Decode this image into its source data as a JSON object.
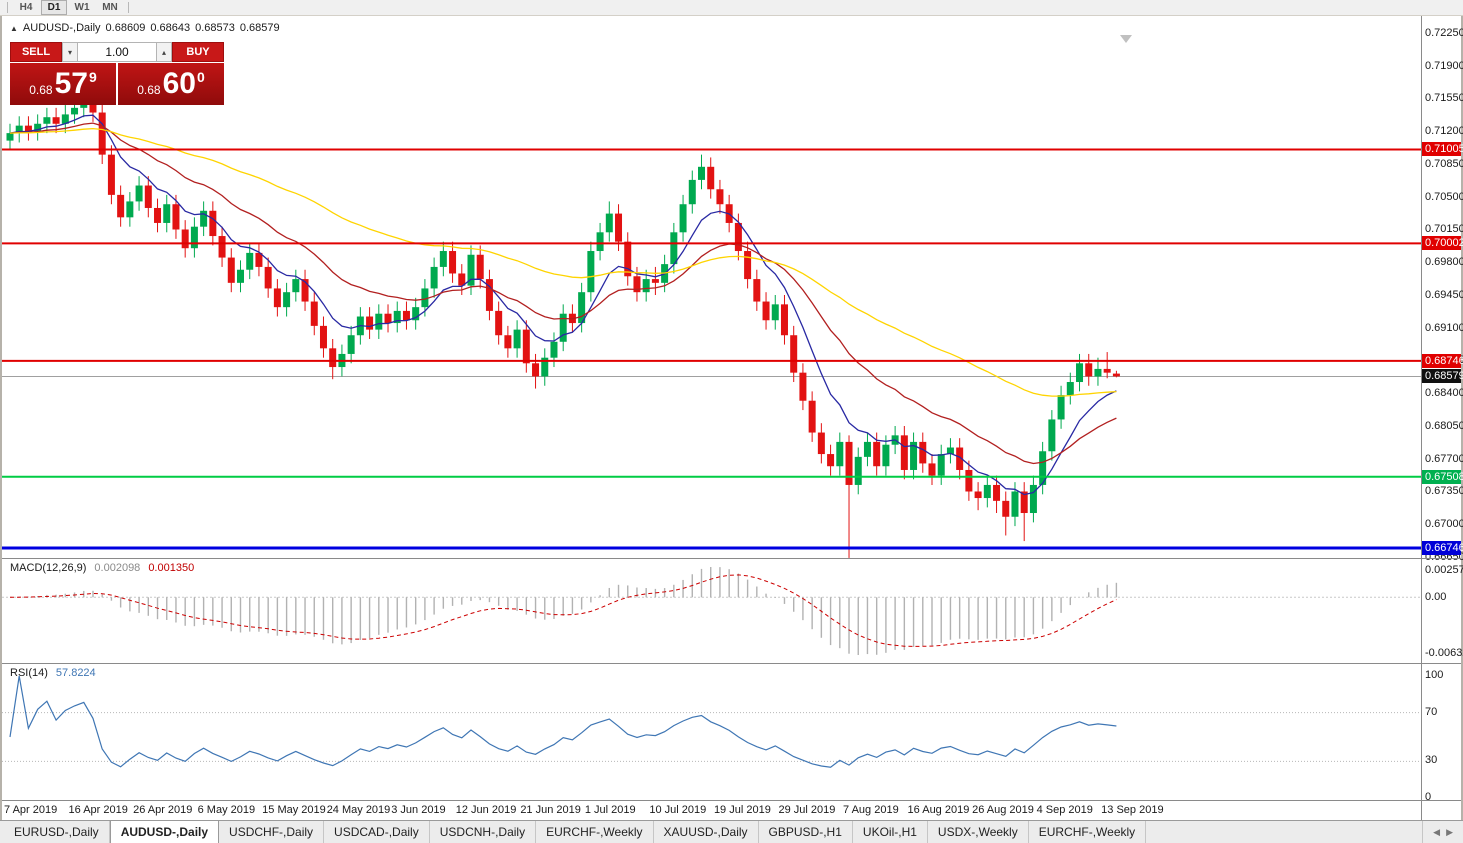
{
  "topbar": {
    "timeframes": [
      {
        "label": "H4",
        "active": false
      },
      {
        "label": "D1",
        "active": true
      },
      {
        "label": "W1",
        "active": false
      },
      {
        "label": "MN",
        "active": false
      }
    ]
  },
  "chart_header": {
    "symbol": "AUDUSD-,Daily",
    "open": "0.68609",
    "high": "0.68643",
    "low": "0.68573",
    "close": "0.68579"
  },
  "trade_panel": {
    "sell_label": "SELL",
    "buy_label": "BUY",
    "volume_value": "1.00",
    "sell_price": {
      "prefix": "0.68",
      "big": "57",
      "sup": "9"
    },
    "buy_price": {
      "prefix": "0.68",
      "big": "60",
      "sup": "0"
    }
  },
  "price_axis": {
    "labels": [
      "0.72250",
      "0.71900",
      "0.71550",
      "0.71200",
      "0.70850",
      "0.70500",
      "0.70150",
      "0.69800",
      "0.69450",
      "0.69100",
      "0.68750",
      "0.68400",
      "0.68050",
      "0.67700",
      "0.67350",
      "0.67000",
      "0.66650"
    ],
    "marked": [
      {
        "text": "0.71005",
        "bg": "#e00000"
      },
      {
        "text": "0.70002",
        "bg": "#e00000"
      },
      {
        "text": "0.68746",
        "bg": "#e00000"
      },
      {
        "text": "0.68579",
        "bg": "#101010"
      },
      {
        "text": "0.67508",
        "bg": "#00b050"
      },
      {
        "text": "0.66746",
        "bg": "#0000d8"
      }
    ]
  },
  "levels": [
    {
      "price": 0.71005,
      "color": "#e00000",
      "width": 2
    },
    {
      "price": 0.70002,
      "color": "#e00000",
      "width": 2
    },
    {
      "price": 0.68746,
      "color": "#e00000",
      "width": 2
    },
    {
      "price": 0.67508,
      "color": "#00cc44",
      "width": 2
    },
    {
      "price": 0.66746,
      "color": "#0000e0",
      "width": 3
    }
  ],
  "bid_line": {
    "price": 0.68579,
    "color": "#a0a0a0"
  },
  "macd": {
    "label": "MACD(12,26,9)",
    "value_main": "0.002098",
    "value_signal": "0.001350",
    "axis": [
      "0.002574",
      "0.00",
      "-0.006326"
    ],
    "params": {
      "fast": 12,
      "slow": 26,
      "signal": 9
    },
    "histogram_color": "#b2b2b2",
    "signal_color": "#cc0000"
  },
  "rsi": {
    "label": "RSI(14)",
    "value": "57.8224",
    "period": 14,
    "axis": [
      "100",
      "70",
      "30",
      "0"
    ],
    "levels": [
      70,
      30
    ],
    "line_color": "#3f76b4"
  },
  "tabs": [
    {
      "label": "EURUSD-,Daily",
      "active": false
    },
    {
      "label": "AUDUSD-,Daily",
      "active": true
    },
    {
      "label": "USDCHF-,Daily",
      "active": false
    },
    {
      "label": "USDCAD-,Daily",
      "active": false
    },
    {
      "label": "USDCNH-,Daily",
      "active": false
    },
    {
      "label": "EURCHF-,Weekly",
      "active": false
    },
    {
      "label": "XAUUSD-,Daily",
      "active": false
    },
    {
      "label": "GBPUSD-,H1",
      "active": false
    },
    {
      "label": "UKOil-,H1",
      "active": false
    },
    {
      "label": "USDX-,Weekly",
      "active": false
    },
    {
      "label": "EURCHF-,Weekly",
      "active": false
    }
  ],
  "chart_data": {
    "type": "candlestick",
    "title": "AUDUSD-,Daily",
    "y_axis": {
      "max_label": 0.7225,
      "min_label": 0.6665,
      "step": 0.0035
    },
    "x_axis_dates": [
      {
        "index": 0,
        "label": "7 Apr 2019"
      },
      {
        "index": 7,
        "label": "16 Apr 2019"
      },
      {
        "index": 14,
        "label": "26 Apr 2019"
      },
      {
        "index": 21,
        "label": "6 May 2019"
      },
      {
        "index": 28,
        "label": "15 May 2019"
      },
      {
        "index": 35,
        "label": "24 May 2019"
      },
      {
        "index": 42,
        "label": "3 Jun 2019"
      },
      {
        "index": 49,
        "label": "12 Jun 2019"
      },
      {
        "index": 56,
        "label": "21 Jun 2019"
      },
      {
        "index": 63,
        "label": "1 Jul 2019"
      },
      {
        "index": 70,
        "label": "10 Jul 2019"
      },
      {
        "index": 77,
        "label": "19 Jul 2019"
      },
      {
        "index": 84,
        "label": "29 Jul 2019"
      },
      {
        "index": 91,
        "label": "7 Aug 2019"
      },
      {
        "index": 98,
        "label": "16 Aug 2019"
      },
      {
        "index": 105,
        "label": "26 Aug 2019"
      },
      {
        "index": 112,
        "label": "4 Sep 2019"
      },
      {
        "index": 119,
        "label": "13 Sep 2019"
      }
    ],
    "colors": {
      "up": "#00a94f",
      "down": "#e21212"
    },
    "moving_averages": [
      {
        "name": "fast",
        "period": 8,
        "method": "ema",
        "color": "#2929a3"
      },
      {
        "name": "medium",
        "period": 21,
        "method": "ema",
        "color": "#b22020"
      },
      {
        "name": "slow",
        "period": 55,
        "method": "ema",
        "color": "#ffd400"
      }
    ],
    "candles": [
      [
        0.711,
        0.7128,
        0.71,
        0.7118
      ],
      [
        0.7118,
        0.7136,
        0.7108,
        0.7126
      ],
      [
        0.7126,
        0.7136,
        0.711,
        0.712
      ],
      [
        0.712,
        0.7138,
        0.711,
        0.7128
      ],
      [
        0.7128,
        0.7145,
        0.7118,
        0.7135
      ],
      [
        0.7135,
        0.7145,
        0.7118,
        0.7128
      ],
      [
        0.7128,
        0.7148,
        0.7118,
        0.7138
      ],
      [
        0.7138,
        0.7155,
        0.7128,
        0.7145
      ],
      [
        0.7145,
        0.7165,
        0.7135,
        0.7152
      ],
      [
        0.7152,
        0.7162,
        0.713,
        0.714
      ],
      [
        0.714,
        0.715,
        0.7085,
        0.7095
      ],
      [
        0.7095,
        0.7105,
        0.7042,
        0.7052
      ],
      [
        0.7052,
        0.7062,
        0.7018,
        0.7028
      ],
      [
        0.7028,
        0.7055,
        0.7018,
        0.7045
      ],
      [
        0.7045,
        0.7072,
        0.7035,
        0.7062
      ],
      [
        0.7062,
        0.7072,
        0.7028,
        0.7038
      ],
      [
        0.7038,
        0.7048,
        0.7012,
        0.7022
      ],
      [
        0.7022,
        0.7052,
        0.7012,
        0.7042
      ],
      [
        0.7042,
        0.7052,
        0.7005,
        0.7015
      ],
      [
        0.7015,
        0.7025,
        0.6985,
        0.6995
      ],
      [
        0.6995,
        0.7028,
        0.6985,
        0.7018
      ],
      [
        0.7018,
        0.7045,
        0.7008,
        0.7035
      ],
      [
        0.7035,
        0.7045,
        0.6998,
        0.7008
      ],
      [
        0.7008,
        0.7018,
        0.6975,
        0.6985
      ],
      [
        0.6985,
        0.6995,
        0.6948,
        0.6958
      ],
      [
        0.6958,
        0.6982,
        0.6948,
        0.6972
      ],
      [
        0.6972,
        0.7,
        0.6962,
        0.699
      ],
      [
        0.699,
        0.7,
        0.6965,
        0.6975
      ],
      [
        0.6975,
        0.6985,
        0.6942,
        0.6952
      ],
      [
        0.6952,
        0.6962,
        0.6922,
        0.6932
      ],
      [
        0.6932,
        0.6958,
        0.6922,
        0.6948
      ],
      [
        0.6948,
        0.6972,
        0.6938,
        0.6962
      ],
      [
        0.6962,
        0.6972,
        0.6928,
        0.6938
      ],
      [
        0.6938,
        0.6948,
        0.6902,
        0.6912
      ],
      [
        0.6912,
        0.6922,
        0.6878,
        0.6888
      ],
      [
        0.6888,
        0.6898,
        0.6855,
        0.6868
      ],
      [
        0.6868,
        0.6892,
        0.6858,
        0.6882
      ],
      [
        0.6882,
        0.6912,
        0.6872,
        0.6902
      ],
      [
        0.6902,
        0.6932,
        0.6892,
        0.6922
      ],
      [
        0.6922,
        0.6932,
        0.6898,
        0.6908
      ],
      [
        0.6908,
        0.6935,
        0.6898,
        0.6925
      ],
      [
        0.6925,
        0.6935,
        0.6905,
        0.6915
      ],
      [
        0.6915,
        0.6938,
        0.6905,
        0.6928
      ],
      [
        0.6928,
        0.6938,
        0.6908,
        0.6918
      ],
      [
        0.6918,
        0.6942,
        0.6908,
        0.6932
      ],
      [
        0.6932,
        0.6962,
        0.6922,
        0.6952
      ],
      [
        0.6952,
        0.6985,
        0.6942,
        0.6975
      ],
      [
        0.6975,
        0.7002,
        0.6965,
        0.6992
      ],
      [
        0.6992,
        0.7002,
        0.6958,
        0.6968
      ],
      [
        0.6968,
        0.6978,
        0.6945,
        0.6955
      ],
      [
        0.6955,
        0.6998,
        0.6945,
        0.6988
      ],
      [
        0.6988,
        0.6998,
        0.6952,
        0.6962
      ],
      [
        0.6962,
        0.6972,
        0.6918,
        0.6928
      ],
      [
        0.6928,
        0.6938,
        0.6892,
        0.6902
      ],
      [
        0.6902,
        0.6912,
        0.6878,
        0.6888
      ],
      [
        0.6888,
        0.6918,
        0.6878,
        0.6908
      ],
      [
        0.6908,
        0.6918,
        0.6862,
        0.6872
      ],
      [
        0.6872,
        0.6882,
        0.6845,
        0.6858
      ],
      [
        0.6858,
        0.6888,
        0.6848,
        0.6878
      ],
      [
        0.6878,
        0.6905,
        0.6868,
        0.6895
      ],
      [
        0.6895,
        0.6935,
        0.6885,
        0.6925
      ],
      [
        0.6925,
        0.6935,
        0.6905,
        0.6915
      ],
      [
        0.6915,
        0.6958,
        0.6905,
        0.6948
      ],
      [
        0.6948,
        0.7002,
        0.6938,
        0.6992
      ],
      [
        0.6992,
        0.7022,
        0.6982,
        0.7012
      ],
      [
        0.7012,
        0.7045,
        0.7002,
        0.7032
      ],
      [
        0.7032,
        0.7042,
        0.6992,
        0.7002
      ],
      [
        0.7002,
        0.7012,
        0.6955,
        0.6965
      ],
      [
        0.6965,
        0.6975,
        0.6938,
        0.6948
      ],
      [
        0.6948,
        0.6972,
        0.6938,
        0.6962
      ],
      [
        0.6962,
        0.6975,
        0.6945,
        0.6958
      ],
      [
        0.6958,
        0.6988,
        0.6948,
        0.6978
      ],
      [
        0.6978,
        0.7022,
        0.6968,
        0.7012
      ],
      [
        0.7012,
        0.7052,
        0.7002,
        0.7042
      ],
      [
        0.7042,
        0.7078,
        0.7032,
        0.7068
      ],
      [
        0.7068,
        0.7095,
        0.7058,
        0.7082
      ],
      [
        0.7082,
        0.7092,
        0.7048,
        0.7058
      ],
      [
        0.7058,
        0.7068,
        0.7032,
        0.7042
      ],
      [
        0.7042,
        0.7052,
        0.7012,
        0.7022
      ],
      [
        0.7022,
        0.7032,
        0.6982,
        0.6992
      ],
      [
        0.6992,
        0.7002,
        0.6952,
        0.6962
      ],
      [
        0.6962,
        0.6972,
        0.6928,
        0.6938
      ],
      [
        0.6938,
        0.6948,
        0.6908,
        0.6918
      ],
      [
        0.6918,
        0.6945,
        0.6908,
        0.6935
      ],
      [
        0.6935,
        0.6945,
        0.6892,
        0.6902
      ],
      [
        0.6902,
        0.6912,
        0.6852,
        0.6862
      ],
      [
        0.6862,
        0.6872,
        0.6822,
        0.6832
      ],
      [
        0.6832,
        0.6842,
        0.6788,
        0.6798
      ],
      [
        0.6798,
        0.6808,
        0.6765,
        0.6775
      ],
      [
        0.6775,
        0.6785,
        0.6752,
        0.6762
      ],
      [
        0.6762,
        0.6798,
        0.6752,
        0.6788
      ],
      [
        0.6788,
        0.6795,
        0.6664,
        0.6742
      ],
      [
        0.6742,
        0.6782,
        0.6732,
        0.6772
      ],
      [
        0.6772,
        0.6798,
        0.6762,
        0.6788
      ],
      [
        0.6788,
        0.6798,
        0.6752,
        0.6762
      ],
      [
        0.6762,
        0.6795,
        0.6752,
        0.6785
      ],
      [
        0.6785,
        0.6805,
        0.6775,
        0.6795
      ],
      [
        0.6795,
        0.6805,
        0.6748,
        0.6758
      ],
      [
        0.6758,
        0.6798,
        0.6748,
        0.6788
      ],
      [
        0.6788,
        0.6798,
        0.6755,
        0.6765
      ],
      [
        0.6765,
        0.6775,
        0.6742,
        0.6752
      ],
      [
        0.6752,
        0.6785,
        0.6742,
        0.6775
      ],
      [
        0.6775,
        0.6792,
        0.6765,
        0.6782
      ],
      [
        0.6782,
        0.6792,
        0.6748,
        0.6758
      ],
      [
        0.6758,
        0.6768,
        0.6725,
        0.6735
      ],
      [
        0.6735,
        0.6745,
        0.6715,
        0.6728
      ],
      [
        0.6728,
        0.6752,
        0.6718,
        0.6742
      ],
      [
        0.6742,
        0.6752,
        0.6712,
        0.6725
      ],
      [
        0.6725,
        0.6735,
        0.6688,
        0.6708
      ],
      [
        0.6708,
        0.6745,
        0.6698,
        0.6735
      ],
      [
        0.6735,
        0.6745,
        0.6682,
        0.6712
      ],
      [
        0.6712,
        0.6752,
        0.6702,
        0.6742
      ],
      [
        0.6742,
        0.6788,
        0.6732,
        0.6778
      ],
      [
        0.6778,
        0.6822,
        0.6768,
        0.6812
      ],
      [
        0.6812,
        0.6848,
        0.6802,
        0.6838
      ],
      [
        0.6838,
        0.6862,
        0.6828,
        0.6852
      ],
      [
        0.6852,
        0.6882,
        0.6842,
        0.6872
      ],
      [
        0.6872,
        0.6882,
        0.6848,
        0.6858
      ],
      [
        0.6858,
        0.6878,
        0.6848,
        0.6866
      ],
      [
        0.6866,
        0.6884,
        0.6856,
        0.6862
      ],
      [
        0.6861,
        0.6864,
        0.6857,
        0.6858
      ]
    ]
  }
}
